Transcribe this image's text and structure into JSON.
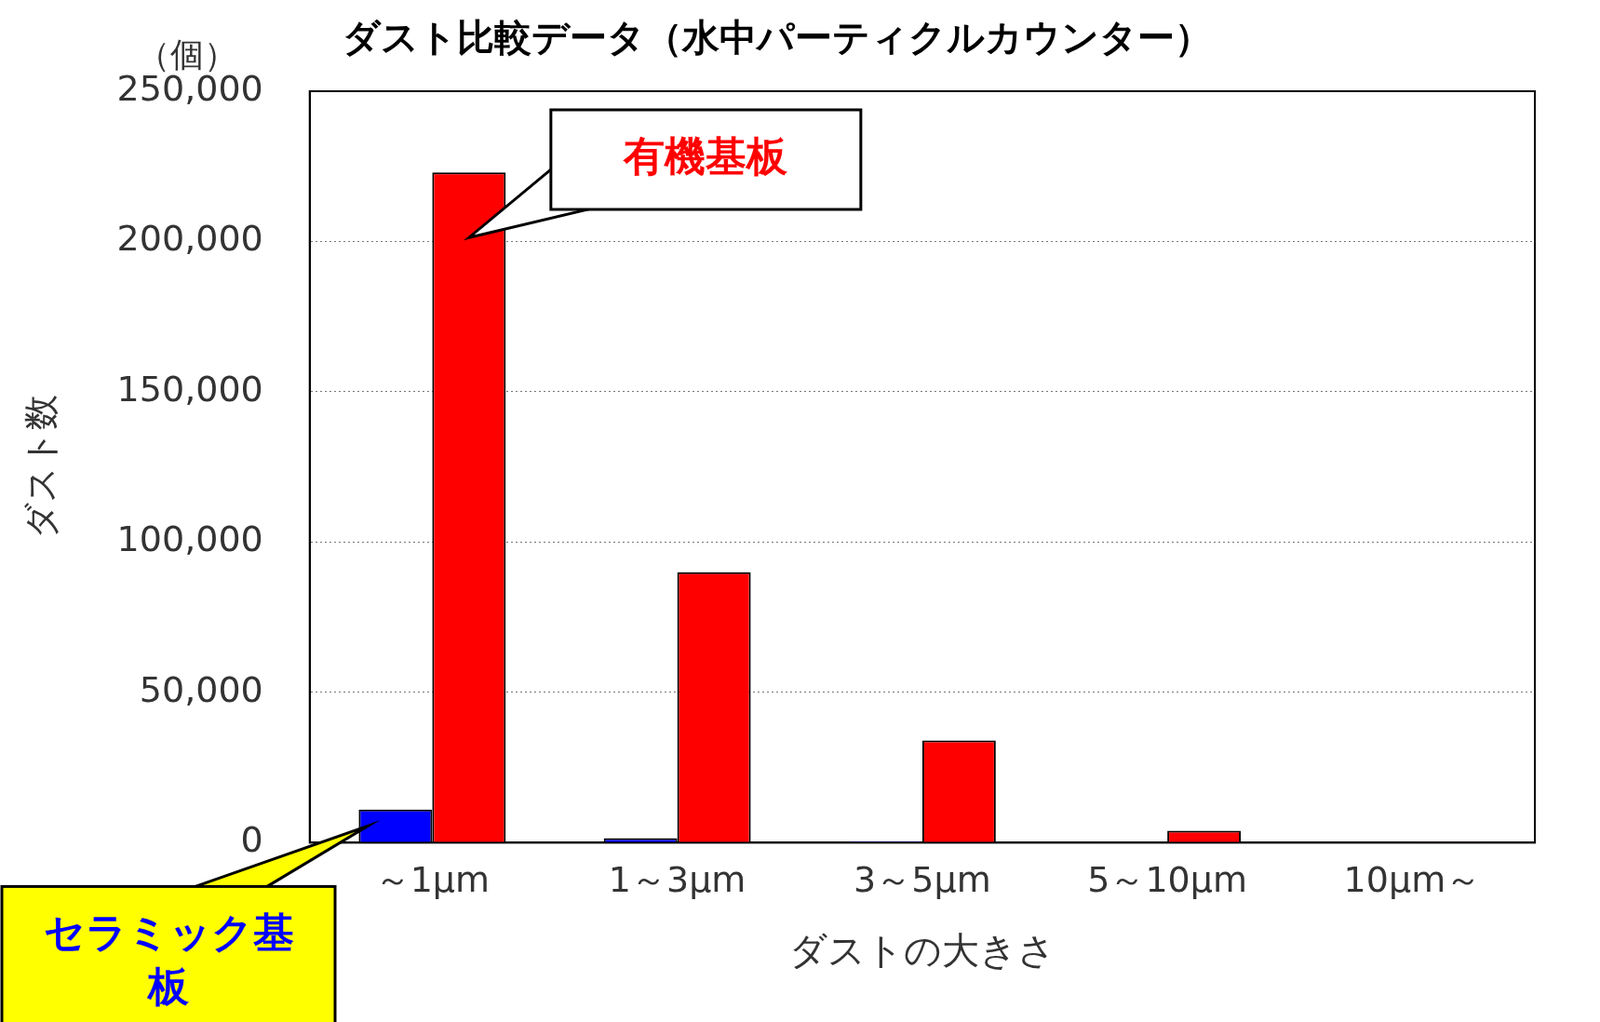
{
  "chart_data": {
    "type": "bar",
    "title": "ダスト比較データ（水中パーティクルカウンター）",
    "x_label": "ダストの大きさ",
    "y_label": "ダスト数",
    "annotations": [
      "（個）"
    ],
    "categories": [
      "～1μm",
      "1～3μm",
      "3～5μm",
      "5～10μm",
      "10μm～"
    ],
    "series": [
      {
        "name": "セラミック基板",
        "color": "#0000ff",
        "values": [
          11000,
          1500,
          500,
          200,
          50
        ]
      },
      {
        "name": "有機基板",
        "color": "#ff0000",
        "values": [
          223000,
          90000,
          34000,
          4000,
          300
        ]
      }
    ],
    "ylim": [
      0,
      250000
    ],
    "yticks": [
      0,
      {
        "value": 50000,
        "label": "50,000"
      },
      {
        "value": 100000,
        "label": "100,000"
      },
      {
        "value": 150000,
        "label": "150,000"
      },
      {
        "value": 200000,
        "label": "200,000"
      },
      {
        "value": 250000,
        "label": "250,000"
      }
    ],
    "grid": true
  }
}
